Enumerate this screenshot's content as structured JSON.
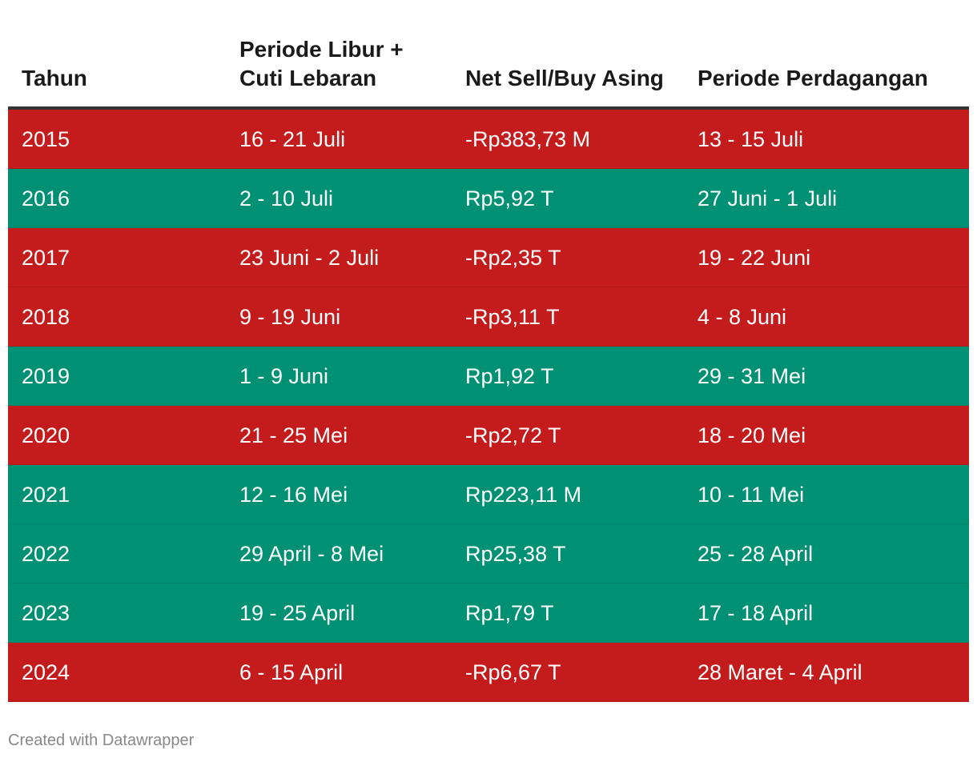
{
  "colors": {
    "sell": "#c41c1c",
    "buy": "#009174",
    "header_rule": "#333333"
  },
  "header": {
    "col1": "Tahun",
    "col2": "Periode Libur + Cuti Lebaran",
    "col3": "Net Sell/Buy Asing",
    "col4": "Periode Perdagangan"
  },
  "chart_data": {
    "type": "table",
    "columns": [
      "Tahun",
      "Periode Libur + Cuti Lebaran",
      "Net Sell/Buy Asing",
      "Periode Perdagangan"
    ],
    "rows": [
      {
        "tahun": "2015",
        "libur": "16 - 21 Juli",
        "net": "-Rp383,73 M",
        "perdagangan": "13 - 15 Juli",
        "kind": "sell"
      },
      {
        "tahun": "2016",
        "libur": "2 - 10 Juli",
        "net": "Rp5,92 T",
        "perdagangan": "27 Juni - 1 Juli",
        "kind": "buy"
      },
      {
        "tahun": "2017",
        "libur": "23 Juni - 2 Juli",
        "net": "-Rp2,35 T",
        "perdagangan": "19 - 22 Juni",
        "kind": "sell"
      },
      {
        "tahun": "2018",
        "libur": "9 - 19 Juni",
        "net": "-Rp3,11 T",
        "perdagangan": "4 - 8 Juni",
        "kind": "sell"
      },
      {
        "tahun": "2019",
        "libur": "1 - 9 Juni",
        "net": "Rp1,92 T",
        "perdagangan": "29 - 31 Mei",
        "kind": "buy"
      },
      {
        "tahun": "2020",
        "libur": "21 - 25 Mei",
        "net": "-Rp2,72 T",
        "perdagangan": "18 - 20 Mei",
        "kind": "sell"
      },
      {
        "tahun": "2021",
        "libur": "12 - 16 Mei",
        "net": "Rp223,11 M",
        "perdagangan": "10 - 11 Mei",
        "kind": "buy"
      },
      {
        "tahun": "2022",
        "libur": "29 April - 8 Mei",
        "net": "Rp25,38 T",
        "perdagangan": "25 - 28 April",
        "kind": "buy"
      },
      {
        "tahun": "2023",
        "libur": "19 - 25 April",
        "net": "Rp1,79 T",
        "perdagangan": "17 - 18 April",
        "kind": "buy"
      },
      {
        "tahun": "2024",
        "libur": "6 - 15 April",
        "net": "-Rp6,67 T",
        "perdagangan": "28 Maret - 4 April",
        "kind": "sell"
      }
    ]
  },
  "footer": {
    "credit": "Created with Datawrapper"
  }
}
